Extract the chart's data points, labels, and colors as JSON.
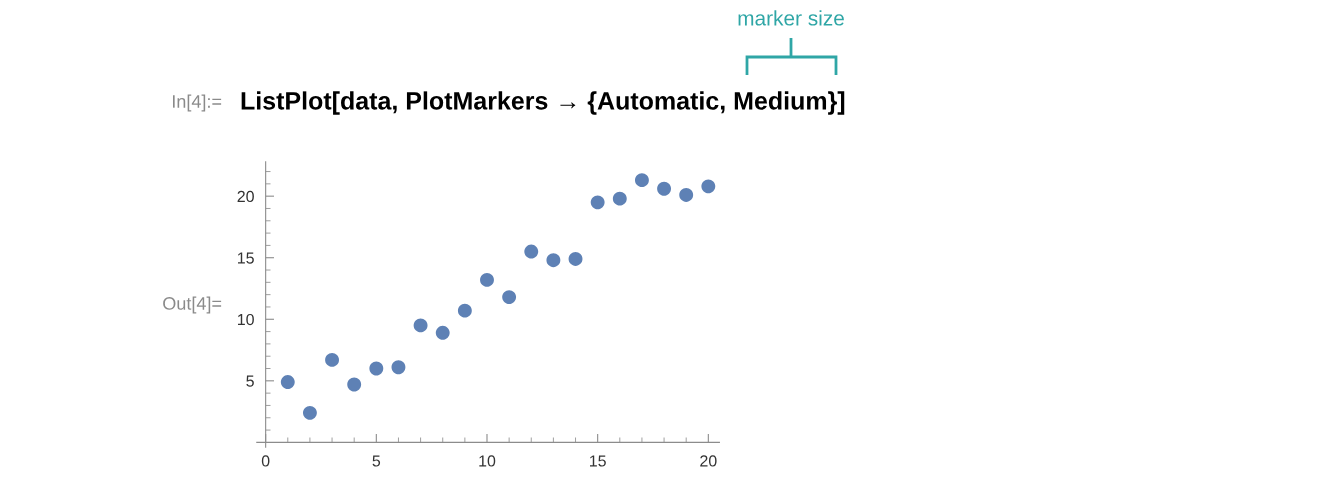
{
  "chart_data": {
    "type": "scatter",
    "x": [
      1,
      2,
      3,
      4,
      5,
      6,
      7,
      8,
      9,
      10,
      11,
      12,
      13,
      14,
      15,
      16,
      17,
      18,
      19,
      20
    ],
    "values": [
      4.9,
      2.4,
      6.7,
      4.7,
      6.0,
      6.1,
      9.5,
      8.9,
      10.7,
      13.2,
      11.8,
      15.5,
      14.8,
      14.9,
      19.5,
      19.8,
      21.3,
      20.6,
      20.1,
      20.8
    ],
    "color": "#5e81b5",
    "marker": "circle",
    "xlim": [
      -0.4,
      20.5
    ],
    "ylim": [
      -0.4,
      22.8
    ],
    "xticks": [
      0,
      {
        "value": 1,
        "label": null
      },
      {
        "value": 2,
        "label": null
      },
      {
        "value": 3,
        "label": null
      },
      {
        "value": 4,
        "label": null
      },
      5,
      {
        "value": 6,
        "label": null
      },
      {
        "value": 7,
        "label": null
      },
      {
        "value": 8,
        "label": null
      },
      {
        "value": 9,
        "label": null
      },
      10,
      {
        "value": 11,
        "label": null
      },
      {
        "value": 12,
        "label": null
      },
      {
        "value": 13,
        "label": null
      },
      {
        "value": 14,
        "label": null
      },
      15,
      {
        "value": 16,
        "label": null
      },
      {
        "value": 17,
        "label": null
      },
      {
        "value": 18,
        "label": null
      },
      {
        "value": 19,
        "label": null
      },
      20
    ],
    "yticks": [
      {
        "value": 1,
        "label": null
      },
      {
        "value": 2,
        "label": null
      },
      {
        "value": 3,
        "label": null
      },
      {
        "value": 4,
        "label": null
      },
      5,
      {
        "value": 6,
        "label": null
      },
      {
        "value": 7,
        "label": null
      },
      {
        "value": 8,
        "label": null
      },
      {
        "value": 9,
        "label": null
      },
      10,
      {
        "value": 11,
        "label": null
      },
      {
        "value": 12,
        "label": null
      },
      {
        "value": 13,
        "label": null
      },
      {
        "value": 14,
        "label": null
      },
      15,
      {
        "value": 16,
        "label": null
      },
      {
        "value": 17,
        "label": null
      },
      {
        "value": 18,
        "label": null
      },
      {
        "value": 19,
        "label": null
      },
      20,
      {
        "value": 21,
        "label": null
      },
      {
        "value": 22,
        "label": null
      }
    ],
    "annotations": [
      "In[4]:=",
      "ListPlot[data, PlotMarkers → {Automatic, Medium}]",
      "Out[4]=",
      "marker size"
    ]
  }
}
